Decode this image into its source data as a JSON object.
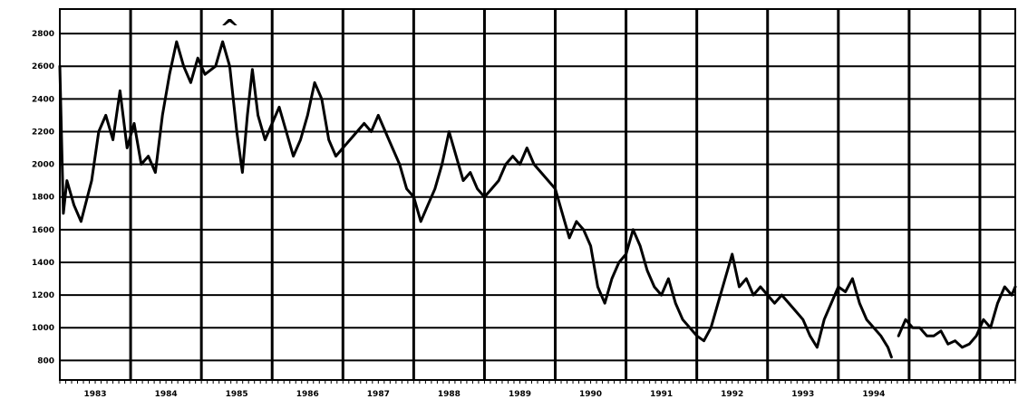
{
  "chart_data": {
    "type": "line",
    "title": "",
    "xlabel": "",
    "ylabel": "",
    "x_ticks": [
      "1983",
      "1984",
      "1985",
      "1986",
      "1987",
      "1988",
      "1989",
      "1990",
      "1991",
      "1992",
      "1993",
      "1994"
    ],
    "y_ticks": [
      800,
      1000,
      1200,
      1400,
      1600,
      1800,
      2000,
      2200,
      2400,
      2600,
      2800
    ],
    "ylim": [
      680,
      2950
    ],
    "xlim": [
      1982.0,
      1995.5
    ],
    "grid": true,
    "legend": "none",
    "line_color": "#000000",
    "annotations": [
      {
        "text": "^",
        "x": 1984.4,
        "y": 2850
      }
    ],
    "series": [
      {
        "segments": [
          [
            [
              1982.0,
              2600
            ],
            [
              1982.05,
              1700
            ],
            [
              1982.1,
              1900
            ],
            [
              1982.2,
              1750
            ],
            [
              1982.3,
              1650
            ],
            [
              1982.45,
              1900
            ],
            [
              1982.55,
              2200
            ],
            [
              1982.65,
              2300
            ],
            [
              1982.75,
              2150
            ],
            [
              1982.85,
              2450
            ],
            [
              1982.95,
              2100
            ],
            [
              1983.05,
              2250
            ],
            [
              1983.15,
              2000
            ],
            [
              1983.25,
              2050
            ],
            [
              1983.35,
              1950
            ],
            [
              1983.45,
              2300
            ],
            [
              1983.55,
              2550
            ],
            [
              1983.65,
              2750
            ],
            [
              1983.75,
              2600
            ],
            [
              1983.85,
              2500
            ],
            [
              1983.95,
              2650
            ],
            [
              1984.05,
              2550
            ],
            [
              1984.2,
              2600
            ],
            [
              1984.3,
              2750
            ],
            [
              1984.4,
              2600
            ],
            [
              1984.5,
              2200
            ],
            [
              1984.58,
              1950
            ],
            [
              1984.65,
              2300
            ],
            [
              1984.72,
              2580
            ],
            [
              1984.8,
              2300
            ],
            [
              1984.9,
              2150
            ],
            [
              1985.0,
              2250
            ],
            [
              1985.1,
              2350
            ],
            [
              1985.2,
              2200
            ],
            [
              1985.3,
              2050
            ],
            [
              1985.4,
              2150
            ],
            [
              1985.5,
              2300
            ],
            [
              1985.6,
              2500
            ],
            [
              1985.7,
              2400
            ],
            [
              1985.8,
              2150
            ],
            [
              1985.9,
              2050
            ],
            [
              1986.0,
              2100
            ],
            [
              1986.1,
              2150
            ],
            [
              1986.2,
              2200
            ],
            [
              1986.3,
              2250
            ],
            [
              1986.4,
              2200
            ],
            [
              1986.5,
              2300
            ],
            [
              1986.6,
              2200
            ],
            [
              1986.7,
              2100
            ],
            [
              1986.8,
              2000
            ],
            [
              1986.9,
              1850
            ],
            [
              1987.0,
              1800
            ],
            [
              1987.1,
              1650
            ],
            [
              1987.2,
              1750
            ],
            [
              1987.3,
              1850
            ],
            [
              1987.4,
              2000
            ],
            [
              1987.5,
              2200
            ],
            [
              1987.6,
              2050
            ],
            [
              1987.7,
              1900
            ],
            [
              1987.8,
              1950
            ],
            [
              1987.9,
              1850
            ],
            [
              1988.0,
              1800
            ],
            [
              1988.1,
              1850
            ],
            [
              1988.2,
              1900
            ],
            [
              1988.3,
              2000
            ],
            [
              1988.4,
              2050
            ],
            [
              1988.5,
              2000
            ],
            [
              1988.6,
              2100
            ],
            [
              1988.7,
              2000
            ],
            [
              1988.8,
              1950
            ],
            [
              1988.9,
              1900
            ],
            [
              1989.0,
              1850
            ],
            [
              1989.1,
              1700
            ],
            [
              1989.2,
              1550
            ],
            [
              1989.3,
              1650
            ],
            [
              1989.4,
              1600
            ],
            [
              1989.5,
              1500
            ],
            [
              1989.6,
              1250
            ],
            [
              1989.7,
              1150
            ],
            [
              1989.8,
              1300
            ],
            [
              1989.9,
              1400
            ],
            [
              1990.0,
              1450
            ],
            [
              1990.1,
              1600
            ],
            [
              1990.2,
              1500
            ],
            [
              1990.3,
              1350
            ],
            [
              1990.4,
              1250
            ],
            [
              1990.5,
              1200
            ],
            [
              1990.6,
              1300
            ],
            [
              1990.7,
              1150
            ],
            [
              1990.8,
              1050
            ],
            [
              1990.9,
              1000
            ],
            [
              1991.0,
              950
            ],
            [
              1991.1,
              920
            ],
            [
              1991.2,
              1000
            ],
            [
              1991.3,
              1150
            ],
            [
              1991.4,
              1300
            ],
            [
              1991.5,
              1450
            ],
            [
              1991.6,
              1250
            ],
            [
              1991.7,
              1300
            ],
            [
              1991.8,
              1200
            ],
            [
              1991.9,
              1250
            ],
            [
              1992.0,
              1200
            ],
            [
              1992.1,
              1150
            ],
            [
              1992.2,
              1200
            ],
            [
              1992.3,
              1150
            ],
            [
              1992.4,
              1100
            ],
            [
              1992.5,
              1050
            ],
            [
              1992.6,
              950
            ],
            [
              1992.7,
              880
            ],
            [
              1992.8,
              1050
            ],
            [
              1992.9,
              1150
            ],
            [
              1993.0,
              1250
            ],
            [
              1993.1,
              1220
            ],
            [
              1993.2,
              1300
            ],
            [
              1993.3,
              1150
            ],
            [
              1993.4,
              1050
            ],
            [
              1993.5,
              1000
            ],
            [
              1993.6,
              950
            ],
            [
              1993.7,
              880
            ],
            [
              1993.75,
              820
            ]
          ],
          [
            [
              1993.85,
              950
            ],
            [
              1993.95,
              1050
            ],
            [
              1994.05,
              1000
            ],
            [
              1994.15,
              1000
            ],
            [
              1994.25,
              950
            ],
            [
              1994.35,
              950
            ],
            [
              1994.45,
              980
            ],
            [
              1994.55,
              900
            ],
            [
              1994.65,
              920
            ],
            [
              1994.75,
              880
            ],
            [
              1994.85,
              900
            ],
            [
              1994.95,
              950
            ],
            [
              1995.05,
              1050
            ],
            [
              1995.15,
              1000
            ],
            [
              1995.25,
              1150
            ],
            [
              1995.35,
              1250
            ],
            [
              1995.45,
              1200
            ],
            [
              1995.5,
              1250
            ]
          ]
        ]
      }
    ]
  }
}
